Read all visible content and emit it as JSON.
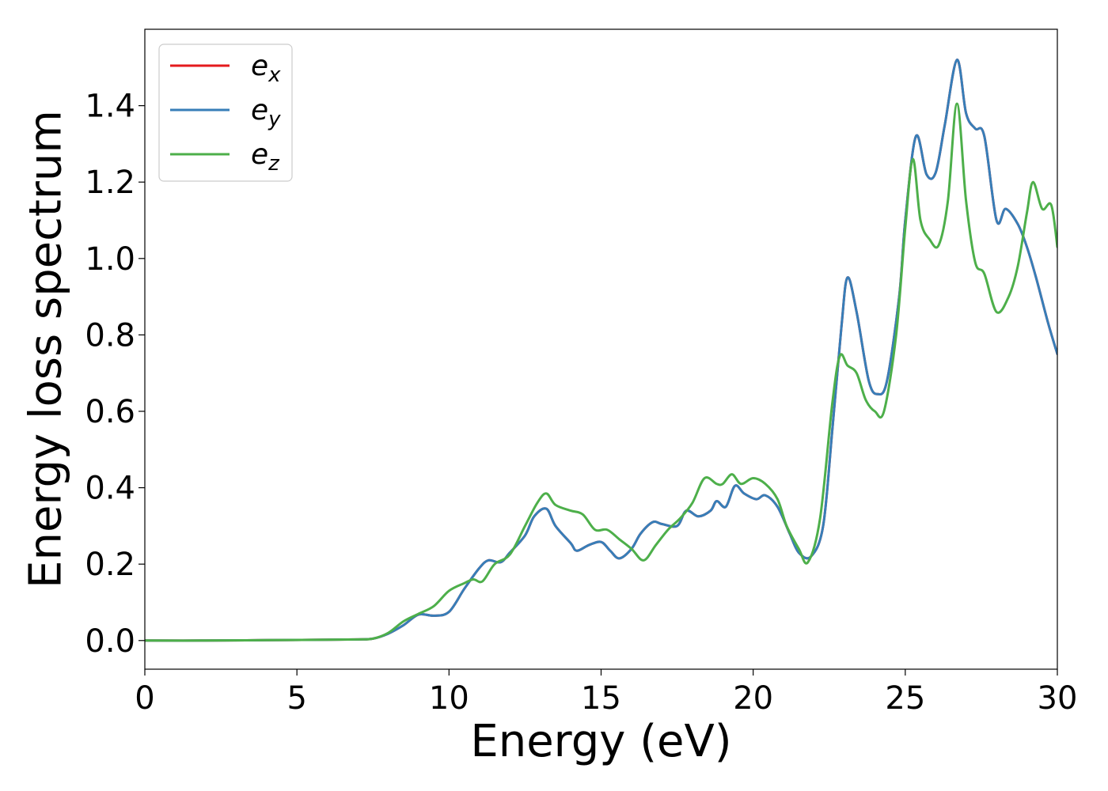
{
  "chart_data": {
    "type": "line",
    "title": "",
    "xlabel": "Energy (eV)",
    "ylabel": "Energy loss spectrum",
    "xlim": [
      0,
      30
    ],
    "ylim": [
      -0.075,
      1.6
    ],
    "xticks": [
      0,
      5,
      10,
      15,
      20,
      25,
      30
    ],
    "yticks": [
      0.0,
      0.2,
      0.4,
      0.6,
      0.8,
      1.0,
      1.2,
      1.4
    ],
    "xtick_labels": [
      "0",
      "5",
      "10",
      "15",
      "20",
      "25",
      "30"
    ],
    "ytick_labels": [
      "0.0",
      "0.2",
      "0.4",
      "0.6",
      "0.8",
      "1.0",
      "1.2",
      "1.4"
    ],
    "grid": false,
    "legend": {
      "position": "top-left",
      "entries": [
        {
          "base": "e",
          "sub": "x",
          "color": "#e41a1c"
        },
        {
          "base": "e",
          "sub": "y",
          "color": "#377eb8"
        },
        {
          "base": "e",
          "sub": "z",
          "color": "#4daf4a"
        }
      ]
    },
    "series": [
      {
        "name": "e_x",
        "color": "#e41a1c",
        "x": [
          0,
          2,
          4,
          6,
          7,
          7.5,
          8,
          8.5,
          9,
          9.5,
          10,
          10.5,
          11,
          11.3,
          11.7,
          12,
          12.5,
          12.8,
          13.2,
          13.5,
          14,
          14.2,
          14.6,
          15,
          15.3,
          15.6,
          16,
          16.3,
          16.7,
          17,
          17.5,
          17.8,
          18.2,
          18.6,
          18.8,
          19.1,
          19.4,
          19.7,
          20.1,
          20.4,
          20.8,
          21.2,
          21.5,
          21.9,
          22.3,
          22.6,
          22.9,
          23.1,
          23.4,
          23.8,
          24.1,
          24.4,
          24.8,
          25.0,
          25.35,
          25.7,
          26.0,
          26.3,
          26.7,
          27.0,
          27.3,
          27.6,
          28.0,
          28.3,
          28.7,
          29.0,
          29.3,
          29.7,
          30.0
        ],
        "y": [
          0.0,
          0.0,
          0.001,
          0.002,
          0.003,
          0.005,
          0.018,
          0.04,
          0.068,
          0.065,
          0.075,
          0.135,
          0.19,
          0.21,
          0.205,
          0.23,
          0.275,
          0.325,
          0.345,
          0.3,
          0.255,
          0.235,
          0.25,
          0.258,
          0.235,
          0.215,
          0.24,
          0.28,
          0.31,
          0.305,
          0.3,
          0.34,
          0.325,
          0.34,
          0.365,
          0.35,
          0.405,
          0.385,
          0.37,
          0.38,
          0.35,
          0.28,
          0.23,
          0.22,
          0.3,
          0.55,
          0.82,
          0.95,
          0.86,
          0.68,
          0.645,
          0.68,
          0.9,
          1.1,
          1.32,
          1.22,
          1.225,
          1.35,
          1.52,
          1.38,
          1.34,
          1.32,
          1.1,
          1.13,
          1.09,
          1.03,
          0.95,
          0.83,
          0.75
        ]
      },
      {
        "name": "e_y",
        "color": "#377eb8",
        "x": [
          0,
          2,
          4,
          6,
          7,
          7.5,
          8,
          8.5,
          9,
          9.5,
          10,
          10.5,
          11,
          11.3,
          11.7,
          12,
          12.5,
          12.8,
          13.2,
          13.5,
          14,
          14.2,
          14.6,
          15,
          15.3,
          15.6,
          16,
          16.3,
          16.7,
          17,
          17.5,
          17.8,
          18.2,
          18.6,
          18.8,
          19.1,
          19.4,
          19.7,
          20.1,
          20.4,
          20.8,
          21.2,
          21.5,
          21.9,
          22.3,
          22.6,
          22.9,
          23.1,
          23.4,
          23.8,
          24.1,
          24.4,
          24.8,
          25.0,
          25.35,
          25.7,
          26.0,
          26.3,
          26.7,
          27.0,
          27.3,
          27.6,
          28.0,
          28.3,
          28.7,
          29.0,
          29.3,
          29.7,
          30.0
        ],
        "y": [
          0.0,
          0.0,
          0.001,
          0.002,
          0.003,
          0.005,
          0.018,
          0.04,
          0.068,
          0.065,
          0.075,
          0.135,
          0.19,
          0.21,
          0.205,
          0.23,
          0.275,
          0.325,
          0.345,
          0.3,
          0.255,
          0.235,
          0.25,
          0.258,
          0.235,
          0.215,
          0.24,
          0.28,
          0.31,
          0.305,
          0.3,
          0.34,
          0.325,
          0.34,
          0.365,
          0.35,
          0.405,
          0.385,
          0.37,
          0.38,
          0.35,
          0.28,
          0.23,
          0.22,
          0.3,
          0.55,
          0.82,
          0.95,
          0.86,
          0.68,
          0.645,
          0.68,
          0.9,
          1.1,
          1.32,
          1.22,
          1.225,
          1.35,
          1.52,
          1.38,
          1.34,
          1.32,
          1.1,
          1.13,
          1.09,
          1.03,
          0.95,
          0.83,
          0.75
        ]
      },
      {
        "name": "e_z",
        "color": "#4daf4a",
        "x": [
          0,
          2,
          4,
          6,
          7,
          7.5,
          8,
          8.5,
          9,
          9.5,
          10,
          10.5,
          10.8,
          11.1,
          11.5,
          12,
          12.5,
          12.9,
          13.2,
          13.5,
          14,
          14.4,
          14.8,
          15.2,
          15.6,
          16,
          16.4,
          16.8,
          17.2,
          17.6,
          18.0,
          18.4,
          18.8,
          19.0,
          19.3,
          19.6,
          20.0,
          20.4,
          20.8,
          21.1,
          21.5,
          21.8,
          22.2,
          22.6,
          22.85,
          23.1,
          23.4,
          23.7,
          24.0,
          24.3,
          24.7,
          25.0,
          25.25,
          25.5,
          25.8,
          26.1,
          26.4,
          26.7,
          27.0,
          27.3,
          27.6,
          28.0,
          28.4,
          28.7,
          29.0,
          29.2,
          29.5,
          29.8,
          30.0
        ],
        "y": [
          0.0,
          0.0,
          0.001,
          0.002,
          0.003,
          0.005,
          0.02,
          0.05,
          0.07,
          0.09,
          0.13,
          0.15,
          0.16,
          0.155,
          0.2,
          0.225,
          0.3,
          0.36,
          0.385,
          0.355,
          0.34,
          0.33,
          0.29,
          0.29,
          0.265,
          0.24,
          0.21,
          0.25,
          0.29,
          0.32,
          0.36,
          0.425,
          0.41,
          0.41,
          0.435,
          0.41,
          0.425,
          0.41,
          0.37,
          0.3,
          0.24,
          0.205,
          0.32,
          0.62,
          0.745,
          0.72,
          0.7,
          0.63,
          0.6,
          0.6,
          0.8,
          1.08,
          1.26,
          1.1,
          1.05,
          1.035,
          1.15,
          1.405,
          1.15,
          0.99,
          0.96,
          0.86,
          0.9,
          0.98,
          1.12,
          1.2,
          1.13,
          1.14,
          1.03
        ]
      }
    ]
  }
}
